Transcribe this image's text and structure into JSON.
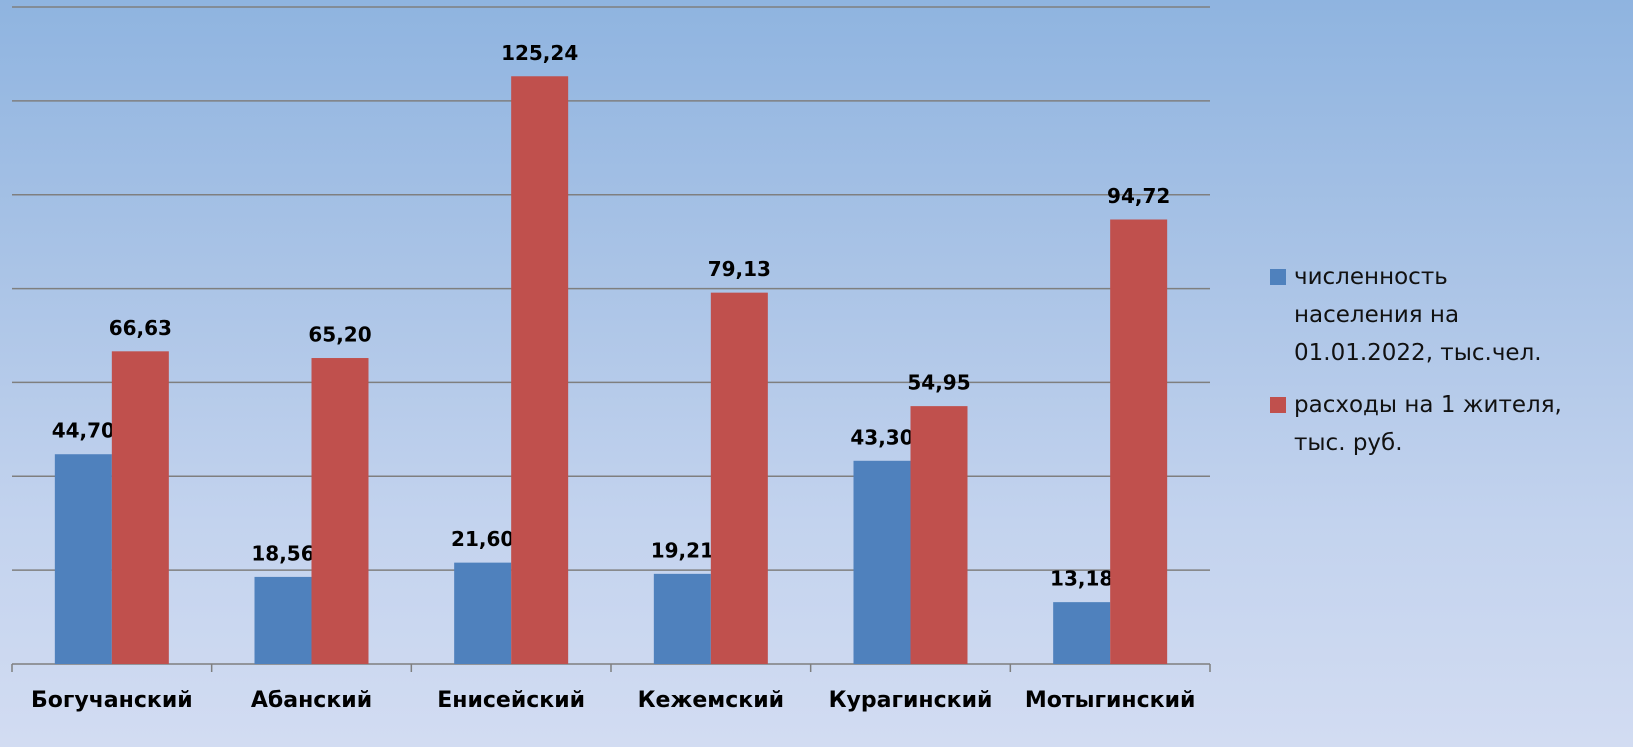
{
  "chart_data": {
    "type": "bar",
    "categories": [
      "Богучанский",
      "Абанский",
      "Енисейский",
      "Кежемский",
      "Курагинский",
      "Мотыгинский"
    ],
    "series": [
      {
        "name": "численность населения на 01.01.2022, тыс.чел.",
        "color": "#4f81bd",
        "values": [
          44.7,
          18.56,
          21.6,
          19.21,
          43.3,
          13.18
        ],
        "value_labels": [
          "44,70",
          "18,56",
          "21,60",
          "19,21",
          "43,30",
          "13,18"
        ]
      },
      {
        "name": "расходы на 1 жителя, тыс. руб.",
        "color": "#c0504d",
        "values": [
          66.63,
          65.2,
          125.24,
          79.13,
          54.95,
          94.72
        ],
        "value_labels": [
          "66,63",
          "65,20",
          "125,24",
          "79,13",
          "54,95",
          "94,72"
        ]
      }
    ],
    "ylim": [
      0,
      140
    ],
    "yticks": [
      0,
      20,
      40,
      60,
      80,
      100,
      120,
      140
    ],
    "grid": true,
    "legend": "right"
  }
}
